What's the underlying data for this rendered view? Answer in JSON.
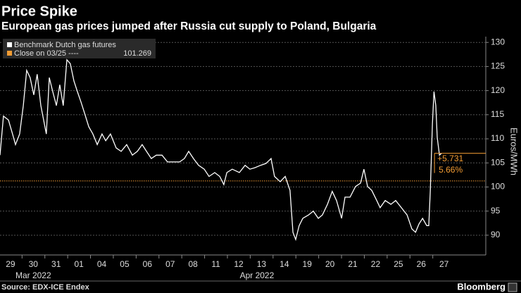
{
  "chart_data": {
    "type": "line",
    "title": "Price Spike",
    "subtitle": "European gas prices jumped after Russia cut supply to Poland, Bulgaria",
    "y_label": "Euros/MWh",
    "source": "Source: EDX-ICE Endex",
    "brand": "Bloomberg",
    "xlim": [
      -0.46,
      20.83
    ],
    "ylim": [
      85.9,
      131.2
    ],
    "yticks": [
      90,
      95,
      100,
      105,
      110,
      115,
      120,
      125,
      130
    ],
    "xticks": [
      {
        "value": 0,
        "label": "29"
      },
      {
        "value": 1,
        "label": "30"
      },
      {
        "value": 2,
        "label": "31"
      },
      {
        "value": 3,
        "label": "01"
      },
      {
        "value": 4,
        "label": "04"
      },
      {
        "value": 5,
        "label": "05"
      },
      {
        "value": 6,
        "label": "06"
      },
      {
        "value": 7,
        "label": "07"
      },
      {
        "value": 8,
        "label": "08"
      },
      {
        "value": 9,
        "label": "11"
      },
      {
        "value": 10,
        "label": "12"
      },
      {
        "value": 11,
        "label": "13"
      },
      {
        "value": 12,
        "label": "14"
      },
      {
        "value": 13,
        "label": "19"
      },
      {
        "value": 14,
        "label": "20"
      },
      {
        "value": 15,
        "label": "21"
      },
      {
        "value": 16,
        "label": "22"
      },
      {
        "value": 17,
        "label": "25"
      },
      {
        "value": 18,
        "label": "26"
      },
      {
        "value": 19,
        "label": "27"
      }
    ],
    "month_labels": [
      {
        "value": 1,
        "label": "Mar 2022"
      },
      {
        "value": 10.8,
        "label": "Apr 2022"
      }
    ],
    "grid": true,
    "series": [
      {
        "name": "Benchmark Dutch gas futures",
        "color": "#ffffff",
        "x": [
          -0.46,
          -0.31,
          -0.09,
          0.09,
          0.22,
          0.4,
          0.56,
          0.71,
          0.86,
          1.02,
          1.17,
          1.33,
          1.48,
          1.57,
          1.7,
          1.85,
          2.01,
          2.16,
          2.31,
          2.47,
          2.62,
          2.78,
          2.93,
          3.09,
          3.24,
          3.43,
          3.61,
          3.8,
          4.01,
          4.17,
          4.38,
          4.63,
          4.85,
          5.09,
          5.34,
          5.56,
          5.77,
          5.96,
          6.17,
          6.39,
          6.64,
          6.88,
          7.1,
          7.41,
          7.62,
          7.81,
          8.02,
          8.24,
          8.49,
          8.7,
          8.95,
          9.17,
          9.35,
          9.48,
          9.72,
          10.03,
          10.28,
          10.49,
          10.71,
          10.96,
          11.2,
          11.42,
          11.57,
          11.82,
          12.04,
          12.25,
          12.38,
          12.5,
          12.65,
          12.81,
          13.06,
          13.27,
          13.49,
          13.67,
          13.89,
          14.1,
          14.29,
          14.51,
          14.66,
          14.88,
          15.12,
          15.34,
          15.49,
          15.65,
          15.83,
          16.05,
          16.2,
          16.42,
          16.67,
          16.88,
          17.13,
          17.38,
          17.59,
          17.75,
          17.9,
          18.06,
          18.24,
          18.33,
          18.4,
          18.49,
          18.56,
          18.64,
          18.7,
          18.8,
          18.89
        ],
        "values": [
          106.6,
          114.7,
          113.9,
          111.0,
          108.8,
          111.0,
          116.9,
          124.2,
          122.7,
          119.1,
          123.4,
          116.9,
          113.2,
          111.0,
          122.7,
          119.8,
          116.9,
          121.2,
          116.9,
          126.4,
          125.6,
          122.0,
          119.8,
          117.6,
          115.4,
          112.5,
          111.0,
          108.8,
          111.0,
          109.6,
          111.0,
          108.1,
          107.4,
          108.8,
          106.6,
          107.4,
          108.8,
          107.4,
          105.9,
          106.6,
          106.6,
          105.2,
          105.2,
          105.2,
          105.9,
          107.4,
          105.9,
          104.5,
          103.7,
          102.2,
          103.0,
          102.2,
          100.5,
          103.0,
          103.7,
          103.0,
          104.5,
          103.7,
          104.0,
          104.5,
          104.9,
          105.9,
          102.2,
          101.1,
          102.2,
          99.3,
          90.6,
          89.1,
          92.0,
          93.5,
          94.2,
          95.0,
          93.5,
          94.2,
          96.4,
          99.1,
          97.2,
          93.5,
          97.9,
          97.9,
          100.1,
          100.8,
          103.7,
          100.1,
          99.3,
          97.2,
          95.7,
          97.2,
          96.4,
          97.2,
          95.7,
          94.2,
          91.3,
          90.6,
          92.3,
          93.5,
          92.0,
          92.0,
          99.3,
          113.2,
          119.8,
          116.9,
          110.3,
          106.6,
          107.0
        ]
      }
    ],
    "reference": {
      "name": "Close on 03/25 ----",
      "value": 101.269,
      "color": "#f39c33"
    },
    "annotations": [
      "+5.731",
      "5.66%"
    ]
  }
}
